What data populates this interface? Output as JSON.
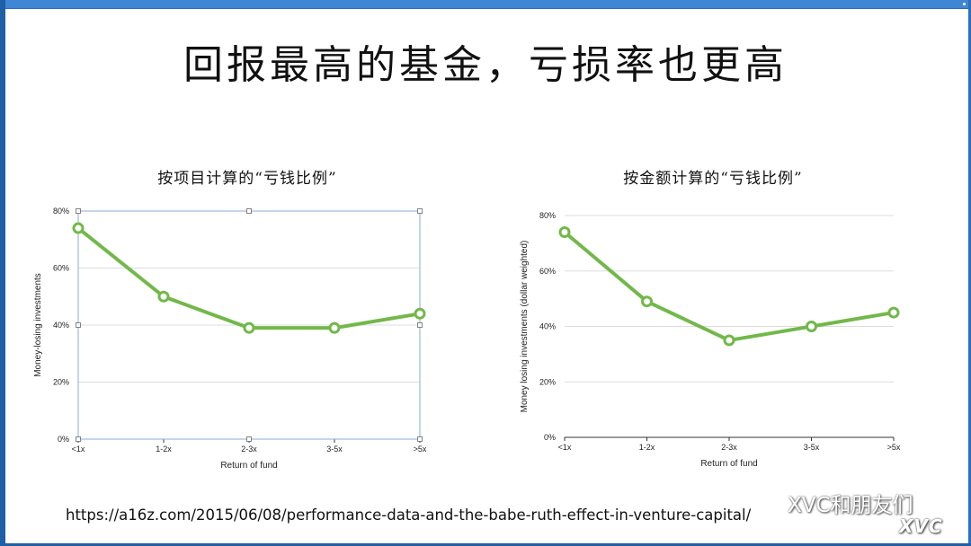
{
  "slide": {
    "title": "回报最高的基金，亏损率也更高",
    "url": "https://a16z.com/2015/06/08/performance-data-and-the-babe-ruth-effect-in-venture-capital/",
    "watermark": "XVC和朋友们",
    "watermark_brand": "XVC"
  },
  "colors": {
    "line": "#72b84a",
    "frame": "#1f5fa6",
    "grid": "#dddddd"
  },
  "chart_data": [
    {
      "type": "line",
      "title": "按项目计算的“亏钱比例”",
      "categories": [
        "<1x",
        "1-2x",
        "2-3x",
        "3-5x",
        ">5x"
      ],
      "series": [
        {
          "values": [
            74,
            50,
            39,
            39,
            44
          ]
        }
      ],
      "xlabel": "Return of fund",
      "ylabel": "Money-losing investments",
      "ylim": [
        0,
        80
      ],
      "yticks": [
        "0%",
        "20%",
        "40%",
        "60%",
        "80%"
      ],
      "grid": true,
      "legend": "none",
      "selected": true
    },
    {
      "type": "line",
      "title": "按金额计算的“亏钱比例”",
      "categories": [
        "<1x",
        "1-2x",
        "2-3x",
        "3-5x",
        ">5x"
      ],
      "series": [
        {
          "values": [
            74,
            49,
            35,
            40,
            45
          ]
        }
      ],
      "xlabel": "Return of fund",
      "ylabel": "Money losing investments (dollar weighted)",
      "ylim": [
        0,
        80
      ],
      "yticks": [
        "0%",
        "20%",
        "40%",
        "60%",
        "80%"
      ],
      "grid": true,
      "legend": "none",
      "selected": false
    }
  ]
}
